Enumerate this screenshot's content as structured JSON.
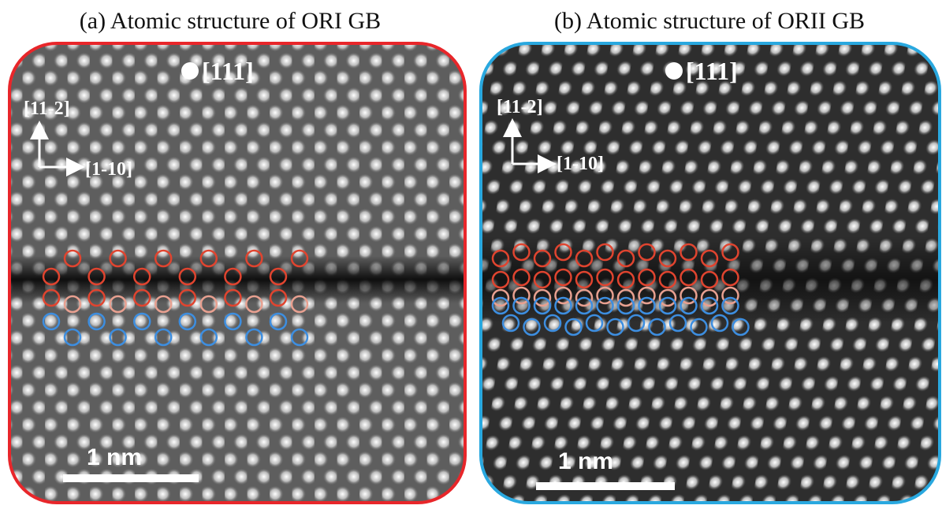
{
  "panels": [
    {
      "title": "(a) Atomic structure of ORI GB",
      "zone_axis": "[111]",
      "direction_up": "[11-2]",
      "direction_right": "[1-10]",
      "scale_bar": "1 nm"
    },
    {
      "title": "(b) Atomic structure of ORII GB",
      "zone_axis": "[111]",
      "direction_up": "[11-2]",
      "direction_right": "[1-10]",
      "scale_bar": "1 nm"
    }
  ]
}
